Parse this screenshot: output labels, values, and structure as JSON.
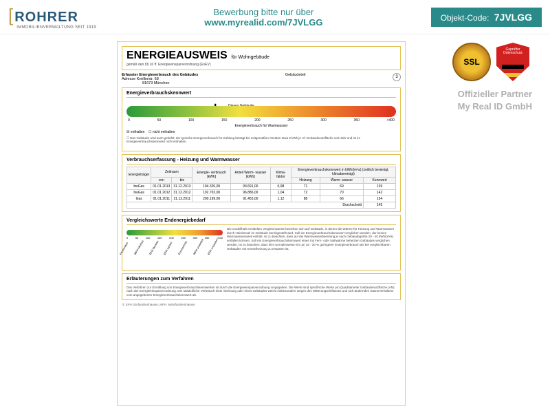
{
  "header": {
    "logo_main": "ROHRER",
    "logo_sub": "IMMOBILIENVERWALTUNG SEIT 1919",
    "apply_text": "Bewerbung bitte nur über",
    "apply_link": "www.myrealid.com/7JVLGG",
    "code_label": "Objekt-Code:",
    "code": "7JVLGG"
  },
  "badges": {
    "ssl": "SSL",
    "shield_line1": "Geprüfter",
    "shield_line2": "Datenschutz",
    "partner_line1": "Offizieller Partner",
    "partner_line2": "My Real ID GmbH"
  },
  "doc": {
    "title": "ENERGIEAUSWEIS",
    "title_sub": "für Wohngebäude",
    "law": "gemäß den §§ 16 ff. Energieeinsparverordnung (EnEV)",
    "page": "3",
    "sec1_title": "Erfasster Energieverbrauch des Gebäudes",
    "addr_label": "Adresse  Kreillerstr. 68",
    "addr_city": "81673 München",
    "part_label": "Gebäudeteil",
    "sec2_title": "Energieverbrauchskennwert",
    "building_label": "Dieses Gebäude:",
    "building_value": "145 kWh/(m²a)",
    "scale_ticks": [
      "0",
      "50",
      "100",
      "150",
      "200",
      "250",
      "300",
      "350",
      ">400"
    ],
    "scale_caption": "Energieverbrauch für Warmwasser",
    "chk_enthalten": "enthalten",
    "chk_nicht": "nicht enthalten",
    "note1": "Das Gebäude wird auch gekühlt; der typische Energieverbrauch für Kühlung beträgt bei zeitgemäßen Geräten etwa 6 kWh je m² Gebäudenutzfläche und Jahr und ist im Energieverbrauchskennwert nicht enthalten.",
    "sec3_title": "Verbrauchserfassung - Heizung und Warmwasser",
    "table": {
      "headers": [
        "Energieträger",
        "von",
        "bis",
        "Energie-\nverbrauch\n[kWh]",
        "Anteil\nWarm-\nwasser\n[kWh]",
        "Klima-\nfaktor",
        "Heizung",
        "Warm-\nwasser",
        "Kennwert"
      ],
      "group1": "Zeitraum",
      "group2": "Energieverbrauchskennwert in kWh/(m²a)\n(zeitlich bereinigt, klimabereinigt)",
      "rows": [
        [
          "bwGas",
          "01.01.2013",
          "31.12.2013",
          "194.320,00",
          "93.691,00",
          "0,98",
          "71",
          "69",
          "139"
        ],
        [
          "bwGas",
          "01.01.2012",
          "31.12.2012",
          "192.702,00",
          "96.886,00",
          "1,04",
          "72",
          "70",
          "142"
        ],
        [
          "Gas",
          "01.01.2011",
          "31.12.2011",
          "200.199,00",
          "91.455,00",
          "1,12",
          "88",
          "66",
          "154"
        ]
      ],
      "avg_label": "Durchschnitt",
      "avg_value": "145"
    },
    "sec4_title": "Vergleichswerte Endenergiebedarf",
    "mini_ticks": [
      "0",
      "50",
      "100",
      "150",
      "200",
      "250",
      "300",
      "350",
      ">400"
    ],
    "slant": [
      "Passivhaus",
      "MFH Neubau",
      "EFH Neubau",
      "EFH saniert",
      "Durchschnitt",
      "MFH unsaniert",
      "EFH unsaniert"
    ],
    "compare_text": "Die modellhaft ermittelten Vergleichswerte beziehen sich auf Gebäude, in denen die Wärme für Heizung und Warmwasser durch Heizkessel im Gebäude bereitgestellt wird. Soll ein Energieverbrauchskennwert verglichen werden, der keinen Warmwasseranteil enthält, ist zu beachten, dass auf die Warmwasserbereitung je nach Gebäudegröße 20 - 40 kWh/(m²a) entfallen können. Soll ein Energieverbrauchskennwert eines mit Fern- oder Nahwärme beheizten Gebäudes verglichen werden, ist zu beachten, dass hier normalerweise ein um 15 - 30 % geringerer Energieverbrauch als bei vergleichbaren Gebäuden mit Kesselheizung zu erwarten ist.",
    "sec5_title": "Erläuterungen zum Verfahren",
    "explain": "Das Verfahren zur Ermittlung von Energieverbrauchskennwerten ist durch die Energieeinsparverordnung vorgegeben. Die Werte sind spezifische Werte pro Quadratmeter Gebäudenutzfläche (AN) nach der Energieeinsparverordnung. Der tatsächliche Verbrauch einer Wohnung oder eines Gebäudes weicht insbesondere wegen des Witterungseinflusses und sich ändernden Nutzerverhaltens vom angegebenen Energieverbrauchskennwert ab.",
    "footnote": "*): EFH: Einfamilienhäuser, MFH: Mehrfamilienhäuser"
  },
  "colors": {
    "primary": "#2a8a8a",
    "border": "#e0c050"
  }
}
